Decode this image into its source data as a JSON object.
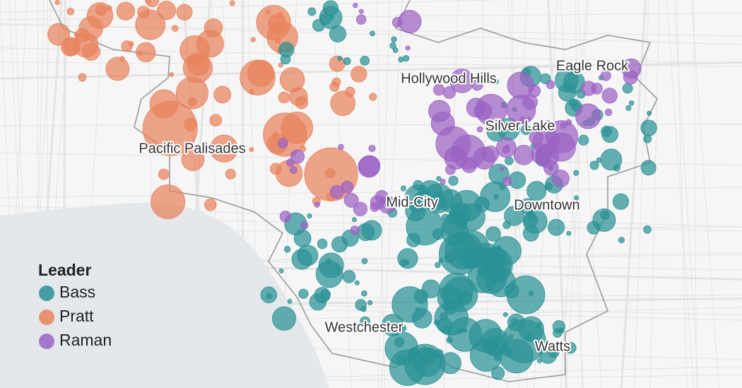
{
  "map": {
    "labels": [
      "Hollywood Hills",
      "Eagle Rock",
      "Silver Lake",
      "Pacific Palisades",
      "Mid-City",
      "Downtown",
      "Westchester",
      "Watts"
    ],
    "legend": {
      "title": "Leader",
      "items": [
        {
          "name": "Bass",
          "color": "#2a9196"
        },
        {
          "name": "Pratt",
          "color": "#e8825c"
        },
        {
          "name": "Raman",
          "color": "#9b62c4"
        }
      ]
    }
  }
}
